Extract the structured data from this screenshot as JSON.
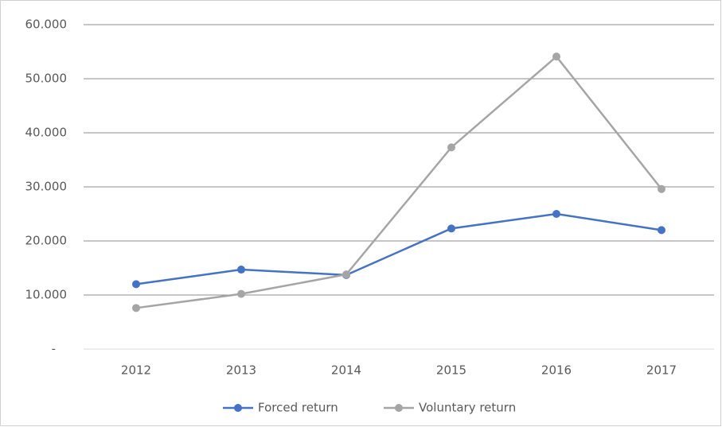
{
  "chart_data": {
    "type": "line",
    "categories": [
      "2012",
      "2013",
      "2014",
      "2015",
      "2016",
      "2017"
    ],
    "series": [
      {
        "name": "Forced return",
        "color": "#4472c4",
        "values": [
          12000,
          14700,
          13700,
          22300,
          25000,
          22000
        ]
      },
      {
        "name": "Voluntary return",
        "color": "#a5a5a5",
        "values": [
          7600,
          10200,
          13800,
          37300,
          54100,
          29600
        ]
      }
    ],
    "ylim": [
      0,
      60000
    ],
    "yticks": [
      {
        "value": 0,
        "label": "-"
      },
      {
        "value": 10000,
        "label": "10.000"
      },
      {
        "value": 20000,
        "label": "20.000"
      },
      {
        "value": 30000,
        "label": "30.000"
      },
      {
        "value": 40000,
        "label": "40.000"
      },
      {
        "value": 50000,
        "label": "50.000"
      },
      {
        "value": 60000,
        "label": "60.000"
      }
    ],
    "grid": true,
    "legend": "bottom"
  }
}
